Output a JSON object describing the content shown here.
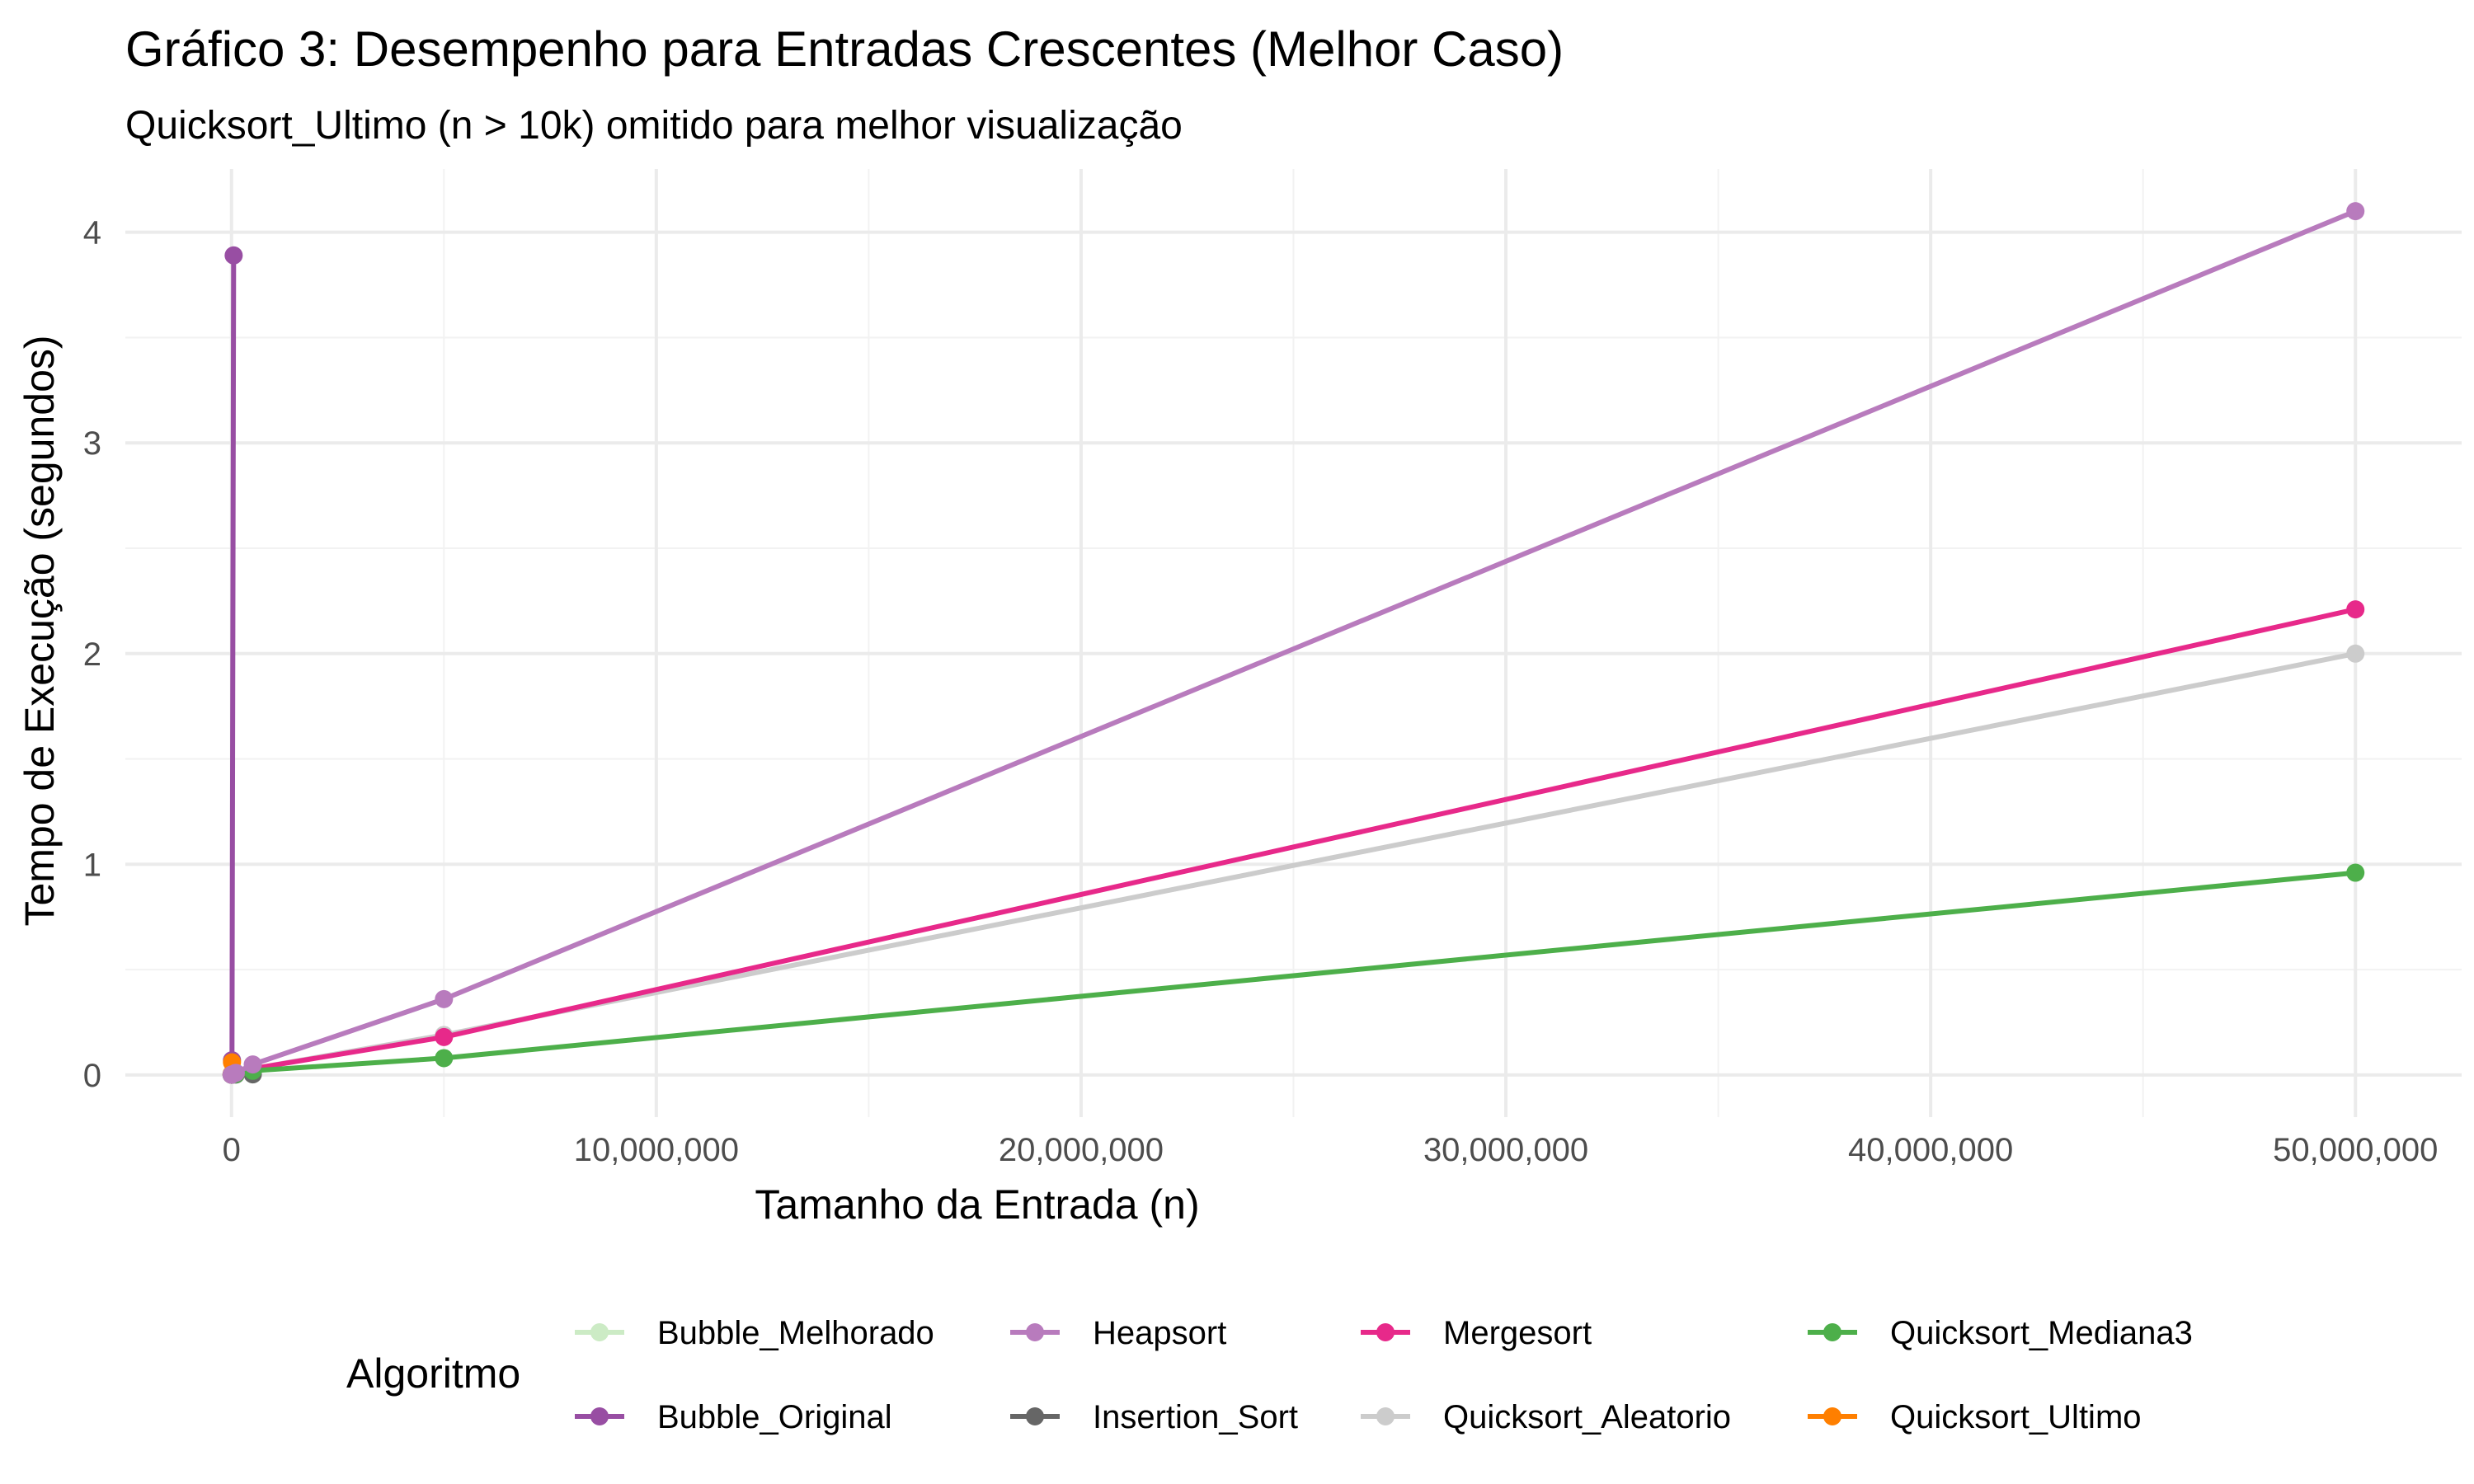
{
  "chart_data": {
    "type": "line",
    "title": "Gráfico 3: Desempenho para Entradas Crescentes (Melhor Caso)",
    "subtitle": "Quicksort_Ultimo (n > 10k) omitido para melhor visualização",
    "xlabel": "Tamanho da Entrada (n)",
    "ylabel": "Tempo de Execução (segundos)",
    "xlim": [
      -2500000,
      52500000
    ],
    "ylim": [
      -0.2,
      4.3
    ],
    "x_ticks": [
      0,
      10000000,
      20000000,
      30000000,
      40000000,
      50000000
    ],
    "x_tick_labels": [
      "0",
      "10,000,000",
      "20,000,000",
      "30,000,000",
      "40,000,000",
      "50,000,000"
    ],
    "y_ticks": [
      0,
      1,
      2,
      3,
      4
    ],
    "y_tick_labels": [
      "0",
      "1",
      "2",
      "3",
      "4"
    ],
    "grid": true,
    "legend": {
      "title": "Algoritmo",
      "position": "bottom",
      "entries": [
        "Bubble_Melhorado",
        "Heapsort",
        "Mergesort",
        "Quicksort_Mediana3",
        "Bubble_Original",
        "Insertion_Sort",
        "Quicksort_Aleatorio",
        "Quicksort_Ultimo"
      ]
    },
    "series": [
      {
        "name": "Bubble_Original",
        "color": "#984ea3",
        "x": [
          1000,
          10000,
          50000
        ],
        "y": [
          0.003,
          0.07,
          3.89
        ]
      },
      {
        "name": "Bubble_Melhorado",
        "color": "#ccebc5",
        "x": [
          1000,
          10000,
          100000,
          500000
        ],
        "y": [
          0.001,
          0.001,
          0.002,
          0.003
        ]
      },
      {
        "name": "Insertion_Sort",
        "color": "#666666",
        "x": [
          1000,
          10000,
          100000,
          500000
        ],
        "y": [
          0.001,
          0.001,
          0.002,
          0.003
        ]
      },
      {
        "name": "Quicksort_Ultimo",
        "color": "#ff7f00",
        "x": [
          1000,
          10000
        ],
        "y": [
          0.004,
          0.06
        ]
      },
      {
        "name": "Quicksort_Aleatorio",
        "color": "#cccccc",
        "x": [
          1000,
          10000,
          100000,
          500000,
          5000000,
          50000000
        ],
        "y": [
          0.001,
          0.002,
          0.005,
          0.03,
          0.19,
          2.0
        ]
      },
      {
        "name": "Mergesort",
        "color": "#e7298a",
        "x": [
          1000,
          10000,
          100000,
          500000,
          5000000,
          50000000
        ],
        "y": [
          0.001,
          0.002,
          0.006,
          0.03,
          0.18,
          2.21
        ]
      },
      {
        "name": "Quicksort_Mediana3",
        "color": "#4daf4a",
        "x": [
          1000,
          10000,
          100000,
          500000,
          5000000,
          50000000
        ],
        "y": [
          0.001,
          0.002,
          0.004,
          0.02,
          0.08,
          0.96
        ]
      },
      {
        "name": "Heapsort",
        "color": "#b87bbd",
        "x": [
          1000,
          10000,
          100000,
          500000,
          5000000,
          50000000
        ],
        "y": [
          0.001,
          0.003,
          0.01,
          0.05,
          0.36,
          4.1
        ]
      }
    ]
  }
}
